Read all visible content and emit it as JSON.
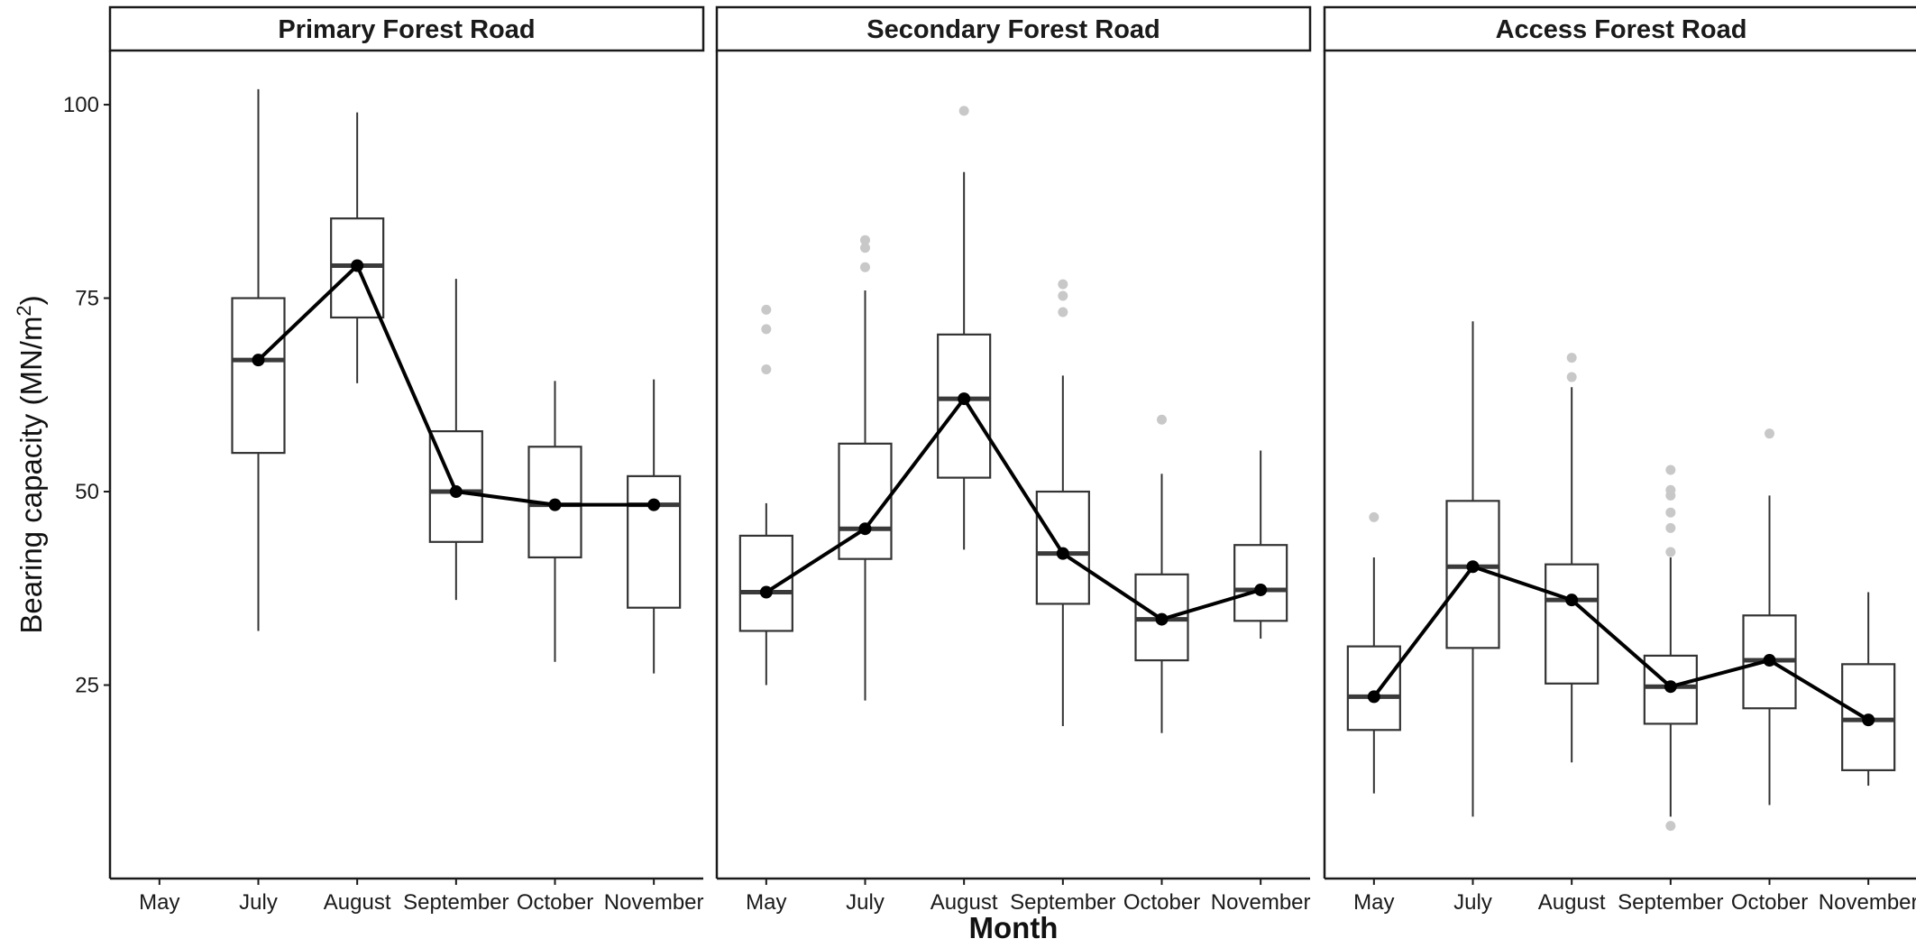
{
  "chart_data": {
    "type": "boxplot",
    "xlabel": "Month",
    "ylabel": "Bearing capacity (MN/m",
    "ylabel_superscript": "2",
    "ylabel_close": ")",
    "ylim": [
      0,
      107
    ],
    "y_ticks": [
      25,
      50,
      75,
      100
    ],
    "categories": [
      "May",
      "July",
      "August",
      "September",
      "October",
      "November"
    ],
    "panels": [
      {
        "title": "Primary Forest Road",
        "boxes": [
          null,
          {
            "month": "July",
            "min": 32,
            "q1": 55,
            "median": 67,
            "q3": 75,
            "max": 102,
            "outliers": []
          },
          {
            "month": "August",
            "min": 64,
            "q1": 72.5,
            "median": 79.2,
            "q3": 85.3,
            "max": 99,
            "outliers": []
          },
          {
            "month": "September",
            "min": 36,
            "q1": 43.5,
            "median": 50,
            "q3": 57.8,
            "max": 77.5,
            "outliers": []
          },
          {
            "month": "October",
            "min": 28,
            "q1": 41.5,
            "median": 48.3,
            "q3": 55.8,
            "max": 64.3,
            "outliers": []
          },
          {
            "month": "November",
            "min": 26.5,
            "q1": 35,
            "median": 48.3,
            "q3": 52,
            "max": 64.5,
            "outliers": []
          }
        ],
        "line": [
          null,
          67,
          79.2,
          50,
          48.3,
          48.3
        ]
      },
      {
        "title": "Secondary Forest Road",
        "boxes": [
          {
            "month": "May",
            "min": 25,
            "q1": 32,
            "median": 37,
            "q3": 44.3,
            "max": 48.5,
            "outliers": [
              65.8,
              71,
              73.5
            ]
          },
          {
            "month": "July",
            "min": 23,
            "q1": 41.3,
            "median": 45.2,
            "q3": 56.2,
            "max": 76,
            "outliers": [
              79,
              81.5,
              82.5
            ]
          },
          {
            "month": "August",
            "min": 42.5,
            "q1": 51.8,
            "median": 62,
            "q3": 70.3,
            "max": 91.3,
            "outliers": [
              99.2
            ]
          },
          {
            "month": "September",
            "min": 19.7,
            "q1": 35.5,
            "median": 42,
            "q3": 50,
            "max": 65,
            "outliers": [
              73.2,
              75.3,
              76.8
            ]
          },
          {
            "month": "October",
            "min": 18.8,
            "q1": 28.2,
            "median": 33.5,
            "q3": 39.3,
            "max": 52.3,
            "outliers": [
              59.3
            ]
          },
          {
            "month": "November",
            "min": 31,
            "q1": 33.3,
            "median": 37.3,
            "q3": 43.1,
            "max": 55.3,
            "outliers": []
          }
        ],
        "line": [
          37,
          45.2,
          62,
          42,
          33.5,
          37.3
        ]
      },
      {
        "title": "Access Forest Road",
        "boxes": [
          {
            "month": "May",
            "min": 11,
            "q1": 19.2,
            "median": 23.5,
            "q3": 30,
            "max": 41.5,
            "outliers": [
              46.7
            ]
          },
          {
            "month": "July",
            "min": 8,
            "q1": 29.8,
            "median": 40.3,
            "q3": 48.8,
            "max": 72,
            "outliers": []
          },
          {
            "month": "August",
            "min": 15,
            "q1": 25.2,
            "median": 36,
            "q3": 40.6,
            "max": 63.5,
            "outliers": [
              64.8,
              67.3
            ]
          },
          {
            "month": "September",
            "min": 8,
            "q1": 20,
            "median": 24.8,
            "q3": 28.8,
            "max": 41.5,
            "outliers": [
              6.8,
              42.2,
              45.3,
              47.3,
              49.5,
              50.2,
              52.8
            ]
          },
          {
            "month": "October",
            "min": 9.5,
            "q1": 22,
            "median": 28.2,
            "q3": 34,
            "max": 49.5,
            "outliers": [
              57.5
            ]
          },
          {
            "month": "November",
            "min": 12,
            "q1": 14,
            "median": 20.5,
            "q3": 27.7,
            "max": 37,
            "outliers": []
          }
        ],
        "line": [
          23.5,
          40.3,
          36,
          24.8,
          28.2,
          20.5
        ]
      }
    ]
  },
  "colors": {
    "box_stroke": "#333333",
    "median": "#3a3a3a",
    "line": "#000000",
    "outlier": "#c8c8c8",
    "axis": "#1a1a1a",
    "strip_fill": "#ffffff"
  }
}
